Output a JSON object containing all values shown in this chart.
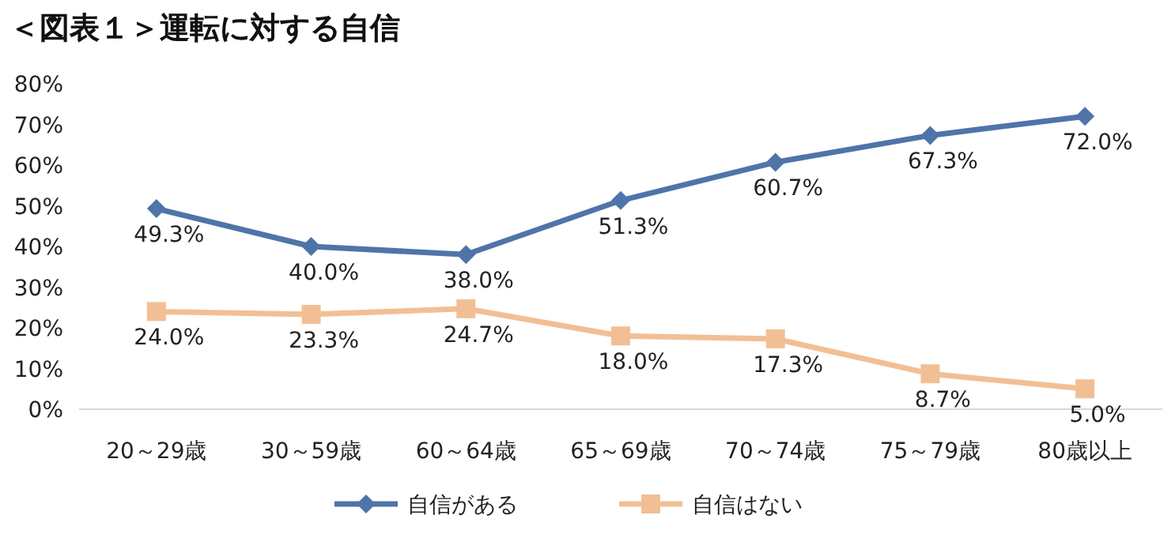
{
  "chart_data": {
    "type": "line",
    "title": "＜図表１＞運転に対する自信",
    "categories": [
      "20～29歳",
      "30～59歳",
      "60～64歳",
      "65～69歳",
      "70～74歳",
      "75～79歳",
      "80歳以上"
    ],
    "series": [
      {
        "name": "自信がある",
        "color": "#4f74a8",
        "marker": "diamond",
        "values": [
          49.3,
          40.0,
          38.0,
          51.3,
          60.7,
          67.3,
          72.0
        ],
        "value_labels": [
          "49.3%",
          "40.0%",
          "38.0%",
          "51.3%",
          "60.7%",
          "67.3%",
          "72.0%"
        ]
      },
      {
        "name": "自信はない",
        "color": "#f2bf94",
        "marker": "square",
        "values": [
          24.0,
          23.3,
          24.7,
          18.0,
          17.3,
          8.7,
          5.0
        ],
        "value_labels": [
          "24.0%",
          "23.3%",
          "24.7%",
          "18.0%",
          "17.3%",
          "8.7%",
          "5.0%"
        ]
      }
    ],
    "ylim": [
      0,
      80
    ],
    "yticks": [
      {
        "value": 0,
        "label": "0%"
      },
      {
        "value": 10,
        "label": "10%"
      },
      {
        "value": 20,
        "label": "20%"
      },
      {
        "value": 30,
        "label": "30%"
      },
      {
        "value": 40,
        "label": "40%"
      },
      {
        "value": 50,
        "label": "50%"
      },
      {
        "value": 60,
        "label": "60%"
      },
      {
        "value": 70,
        "label": "70%"
      },
      {
        "value": 80,
        "label": "80%"
      }
    ],
    "grid": false,
    "legend": "bottom",
    "line_style": "solid"
  }
}
